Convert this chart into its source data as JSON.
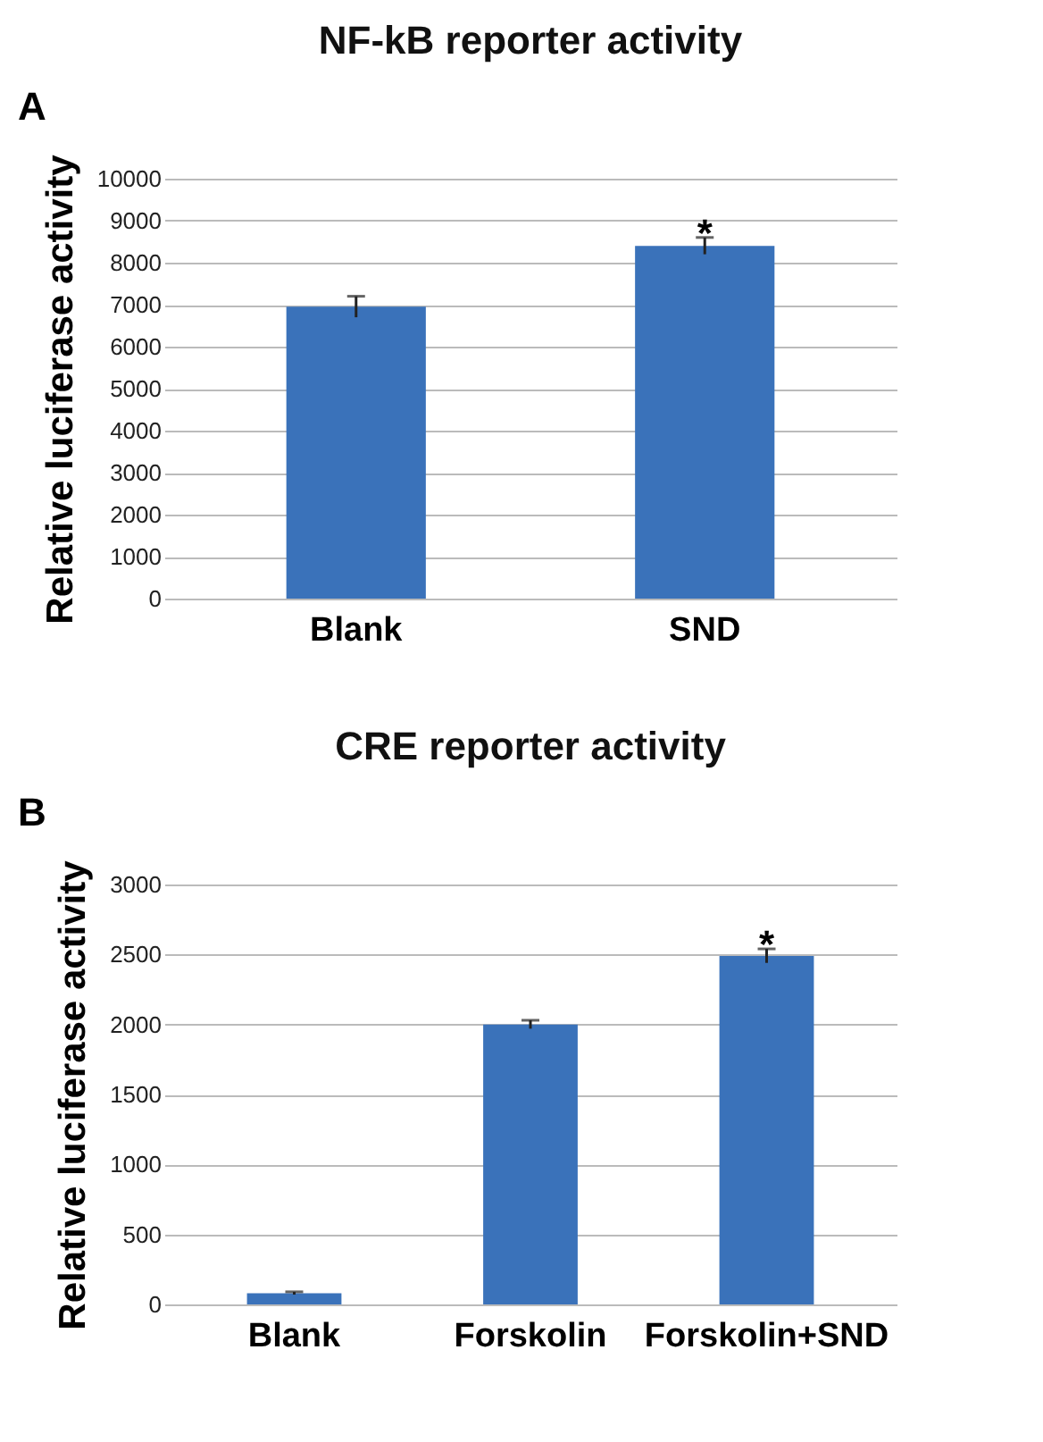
{
  "chart_data": [
    {
      "type": "bar",
      "title": "NF-kB reporter activity",
      "ylabel": "Relative luciferase activity",
      "categories": [
        "Blank",
        "SND"
      ],
      "values": [
        6950,
        8400
      ],
      "errors": [
        250,
        200
      ],
      "color": "#3a72ba",
      "ylim": [
        0,
        10000
      ],
      "yticks": [
        0,
        1000,
        2000,
        3000,
        4000,
        5000,
        6000,
        7000,
        8000,
        9000,
        10000
      ],
      "grid": "y",
      "annotations": [
        "A",
        "*"
      ]
    },
    {
      "type": "bar",
      "title": "CRE reporter activity",
      "ylabel": "Relative luciferase activity",
      "categories": [
        "Blank",
        "Forskolin",
        "Forskolin+SND"
      ],
      "values": [
        80,
        2000,
        2490
      ],
      "errors": [
        10,
        30,
        50
      ],
      "color": "#3a72ba",
      "ylim": [
        0,
        3000
      ],
      "yticks": [
        0,
        500,
        1000,
        1500,
        2000,
        2500,
        3000
      ],
      "grid": "y",
      "annotations": [
        "B",
        "*"
      ]
    }
  ]
}
